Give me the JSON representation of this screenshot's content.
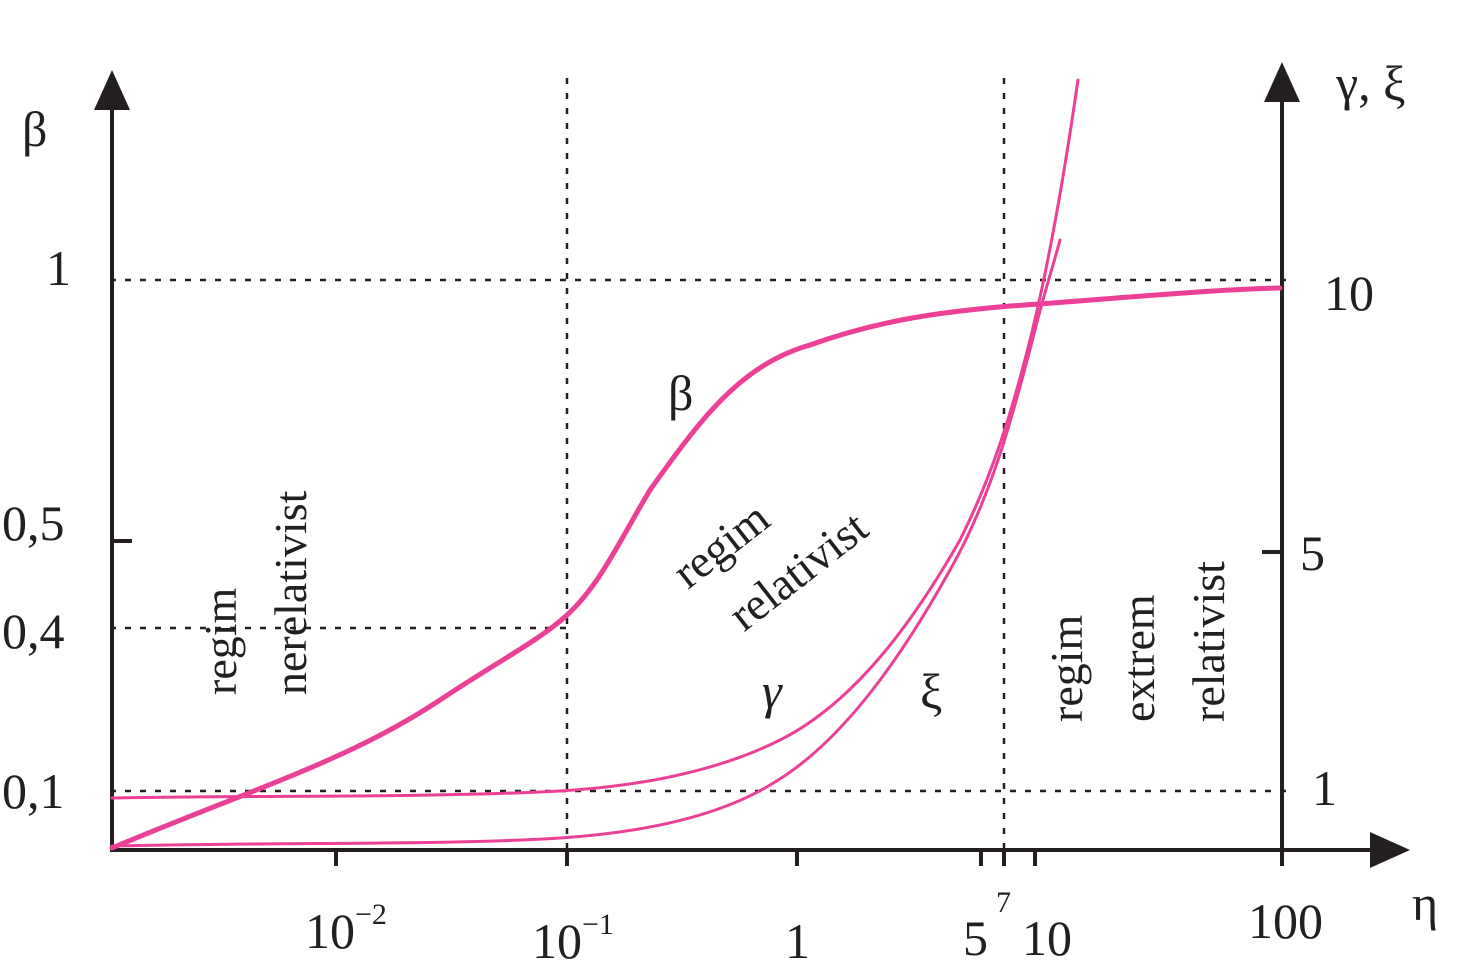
{
  "chart_data": {
    "type": "line",
    "x_axis": {
      "label": "η",
      "scale": "log",
      "ticks": [
        {
          "value": 0.01,
          "base": "10",
          "exp": "−2"
        },
        {
          "value": 0.1,
          "base": "10",
          "exp": "−1"
        },
        {
          "value": 1,
          "text": "1"
        },
        {
          "value": 5,
          "text": "5"
        },
        {
          "value": 7,
          "text": "7"
        },
        {
          "value": 10,
          "text": "10"
        },
        {
          "value": 100,
          "text": "100"
        }
      ]
    },
    "y_left_axis": {
      "label": "β",
      "ticks": [
        "1",
        "0,5",
        "0,4",
        "0,1"
      ]
    },
    "y_right_axis": {
      "label": "γ, ξ",
      "ticks": [
        "10",
        "5",
        "1"
      ]
    },
    "series": [
      {
        "name": "β",
        "axis": "left",
        "points": [
          [
            0.001,
            0.0
          ],
          [
            0.01,
            0.13
          ],
          [
            0.1,
            0.4
          ],
          [
            0.3,
            0.62
          ],
          [
            1,
            0.8
          ],
          [
            5,
            0.89
          ],
          [
            10,
            0.94
          ],
          [
            100,
            0.98
          ]
        ]
      },
      {
        "name": "γ",
        "axis": "right",
        "points": [
          [
            0.001,
            1.0
          ],
          [
            0.01,
            1.0
          ],
          [
            0.1,
            1.02
          ],
          [
            1,
            1.4
          ],
          [
            5,
            6.0
          ],
          [
            7,
            8.1
          ],
          [
            10,
            11.0
          ]
        ]
      },
      {
        "name": "ξ",
        "axis": "right",
        "points": [
          [
            0.001,
            0.0
          ],
          [
            0.01,
            0.02
          ],
          [
            0.1,
            0.2
          ],
          [
            1,
            1.0
          ],
          [
            5,
            5.5
          ],
          [
            7,
            7.5
          ],
          [
            10,
            10.3
          ]
        ]
      }
    ],
    "regions": [
      {
        "lines": [
          "regim",
          "nerelativist"
        ]
      },
      {
        "lines": [
          "regim",
          "relativist"
        ]
      },
      {
        "lines": [
          "regim",
          "extrem",
          "relativist"
        ]
      }
    ],
    "grid": "dashed reference lines",
    "colors": {
      "curves": "#ec3f96",
      "axes": "#231f20"
    }
  }
}
